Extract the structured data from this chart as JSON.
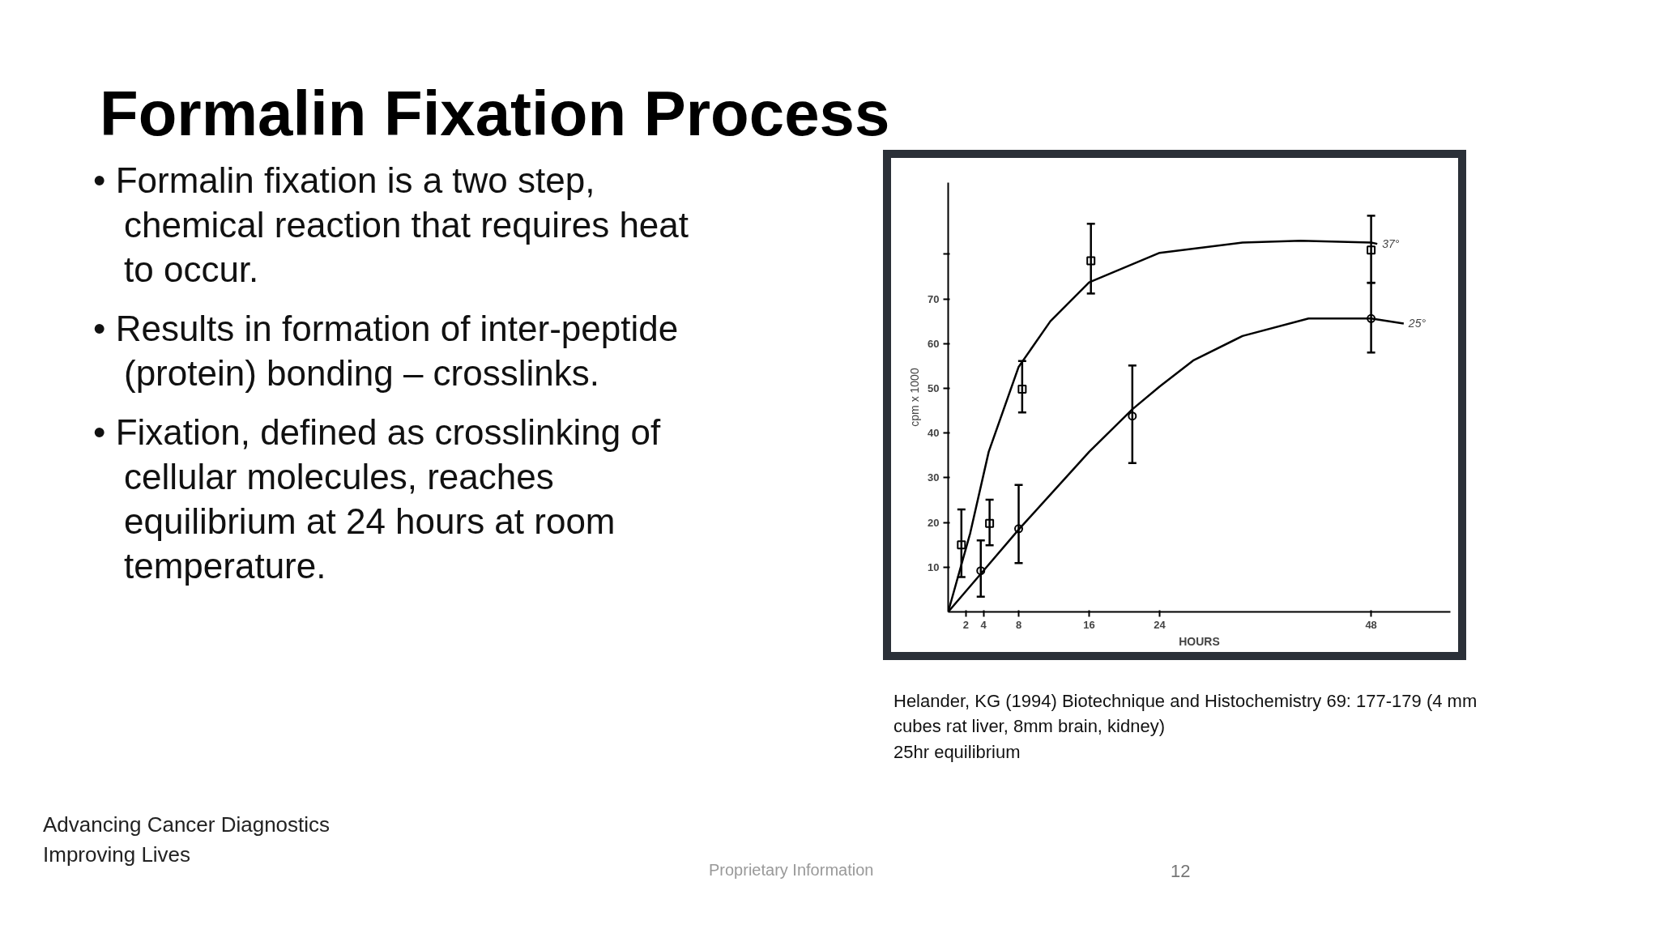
{
  "chart_data": {
    "type": "line",
    "title": "Formalin Fixation Process",
    "xlabel": "HOURS",
    "ylabel": "cpm x 1000",
    "xlim": [
      0,
      57
    ],
    "ylim": [
      0,
      96
    ],
    "xticks": [
      2,
      4,
      8,
      16,
      24,
      48
    ],
    "yticks": [
      10,
      20,
      30,
      40,
      50,
      60,
      70,
      {
        "value": 80,
        "label": null
      }
    ],
    "grid": false,
    "series": [
      {
        "name": "37°",
        "color": "#000000",
        "x": [
          0,
          2.5,
          4.6,
          8,
          11.6,
          16,
          24,
          33.4,
          40,
          48,
          48.7
        ],
        "values": [
          0,
          17.6,
          35.8,
          54.8,
          65,
          73.7,
          80.3,
          82.6,
          83,
          82.6,
          82.3
        ]
      },
      {
        "name": "25°",
        "color": "#000000",
        "x": [
          0,
          4,
          8,
          16,
          20.9,
          24,
          27.8,
          33.4,
          40.9,
          48,
          51.7
        ],
        "values": [
          0,
          9.2,
          18.4,
          35.8,
          45.3,
          50.4,
          56.2,
          61.7,
          65.6,
          65.6,
          64.5
        ]
      },
      {
        "type": "scatter",
        "color": "#000000",
        "marker": "square",
        "x": [
          1.5,
          4.7,
          8.4,
          16.2,
          48
        ],
        "values": [
          15,
          19.8,
          49.8,
          78.5,
          80.9
        ],
        "errors": [
          [
            7.8,
            22.9
          ],
          [
            14.9,
            25.1
          ],
          [
            44.6,
            56.1
          ],
          [
            71.2,
            86.8
          ],
          [
            73.6,
            88.6
          ]
        ]
      },
      {
        "type": "scatter",
        "color": "#000000",
        "marker": "circle",
        "x": [
          3.7,
          8,
          20.9,
          48
        ],
        "values": [
          9.2,
          18.6,
          43.8,
          65.6
        ],
        "errors": [
          [
            3.4,
            16
          ],
          [
            10.9,
            28.4
          ],
          [
            33.3,
            55.1
          ],
          [
            58,
            73.6
          ]
        ]
      }
    ],
    "annotations": [
      "• Formalin fixation is a two step, chemical reaction that requires heat to occur.",
      "• Results in formation of inter-peptide (protein) bonding – crosslinks.",
      "• Fixation, defined as crosslinking of cellular molecules, reaches equilibrium at 24 hours at room temperature.",
      "Helander, KG (1994) Biotechnique and Histochemistry 69: 177-179 (4 mm cubes rat liver, 8mm brain, kidney)\n25hr equilibrium",
      "Advancing Cancer Diagnostics\nImproving Lives",
      "Proprietary Information",
      "12"
    ]
  }
}
